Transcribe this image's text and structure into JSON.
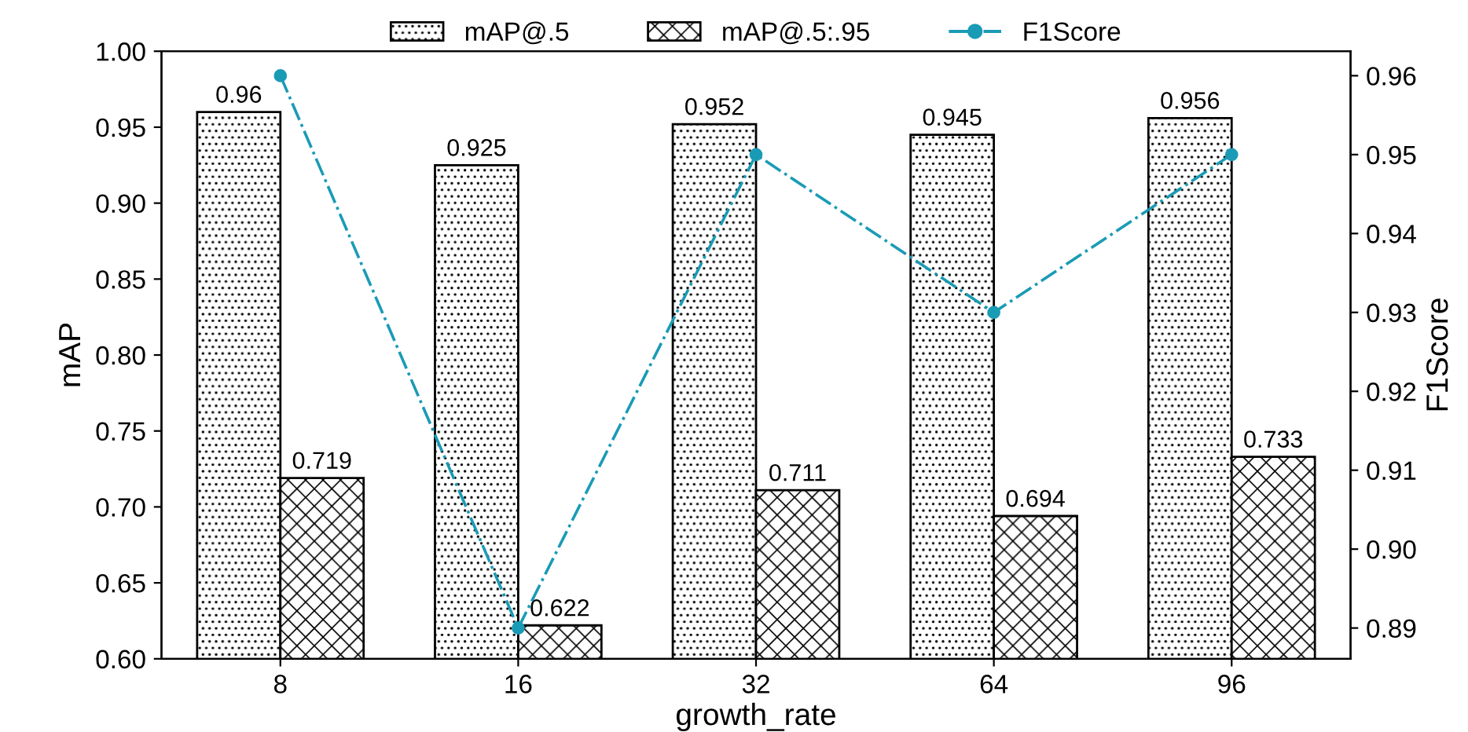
{
  "chart_data": {
    "type": "bar",
    "xlabel": "growth_rate",
    "ylabel": "mAP",
    "y2label": "F1Score",
    "categories": [
      "8",
      "16",
      "32",
      "64",
      "96"
    ],
    "series": [
      {
        "name": "mAP@.5",
        "color": "#000000",
        "values": [
          0.96,
          0.925,
          0.952,
          0.945,
          0.956
        ],
        "value_labels": [
          "0.96",
          "0.925",
          "0.952",
          "0.945",
          "0.956"
        ]
      },
      {
        "name": "mAP@.5:.95",
        "color": "#000000",
        "values": [
          0.719,
          0.622,
          0.711,
          0.694,
          0.733
        ],
        "value_labels": [
          "0.719",
          "0.622",
          "0.711",
          "0.694",
          "0.733"
        ]
      },
      {
        "name": "F1Score",
        "type": "line",
        "axis": "y2",
        "color": "#1a9bb5",
        "marker": "circle",
        "line_style": "dashdot",
        "values": [
          0.96,
          0.89,
          0.95,
          0.93,
          0.95
        ]
      }
    ],
    "ylim": [
      0.6,
      1.0
    ],
    "yticks": [
      "0.60",
      "0.65",
      "0.70",
      "0.75",
      "0.80",
      "0.85",
      "0.90",
      "0.95",
      "1.00"
    ],
    "y2lim": [
      0.8861,
      0.9631
    ],
    "y2ticks": [
      0.89,
      "0.90",
      0.91,
      0.92,
      0.93,
      0.94,
      0.95,
      0.96
    ],
    "legend": "top",
    "grid": false
  }
}
